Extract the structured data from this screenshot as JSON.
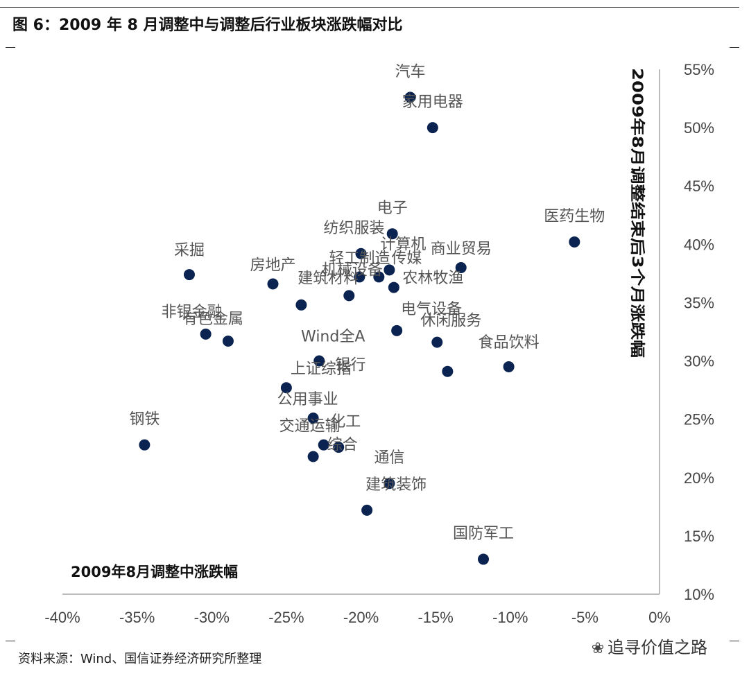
{
  "figure": {
    "title": "图 6：2009 年 8 月调整中与调整后行业板块涨跌幅对比",
    "source": "资料来源：Wind、国信证券经济研究所整理",
    "watermark": "追寻价值之路",
    "watermark_icon": "wechat-icon"
  },
  "chart_data": {
    "type": "scatter",
    "xlabel": "2009年8月调整中涨跌幅",
    "ylabel": "2009年8月调整结束后3个月涨跌幅",
    "xlim": [
      -40,
      0
    ],
    "ylim": [
      10,
      55
    ],
    "xticks": [
      -40,
      -35,
      -30,
      -25,
      -20,
      -15,
      -10,
      -5,
      0
    ],
    "yticks": [
      10,
      15,
      20,
      25,
      30,
      35,
      40,
      45,
      50,
      55
    ],
    "xtick_labels": [
      "-40%",
      "-35%",
      "-30%",
      "-25%",
      "-20%",
      "-15%",
      "-10%",
      "-5%",
      "0%"
    ],
    "ytick_labels": [
      "10%",
      "15%",
      "20%",
      "25%",
      "30%",
      "35%",
      "40%",
      "45%",
      "50%",
      "55%"
    ],
    "y_axis_position": "right",
    "grid": false,
    "marker_color": "#0b2350",
    "points": [
      {
        "label": "汽车",
        "x": -16.7,
        "y": 52.6
      },
      {
        "label": "家用电器",
        "x": -15.2,
        "y": 50.0
      },
      {
        "label": "医药生物",
        "x": -5.7,
        "y": 40.2
      },
      {
        "label": "电子",
        "x": -17.9,
        "y": 40.9
      },
      {
        "label": "纺织服装",
        "x": -20.0,
        "y": 39.2
      },
      {
        "label": "计算机",
        "x": -18.1,
        "y": 37.8
      },
      {
        "label": "轻工制造",
        "x": -20.1,
        "y": 37.2
      },
      {
        "label": "传媒",
        "x": -18.8,
        "y": 37.2
      },
      {
        "label": "机械设备",
        "x": -17.8,
        "y": 36.3
      },
      {
        "label": "商业贸易",
        "x": -13.3,
        "y": 38.0
      },
      {
        "label": "采掘",
        "x": -31.5,
        "y": 37.4
      },
      {
        "label": "房地产",
        "x": -25.9,
        "y": 36.6
      },
      {
        "label": "建筑材料",
        "x": -20.8,
        "y": 35.6
      },
      {
        "label": "农林牧渔",
        "x": -24.0,
        "y": 34.8
      },
      {
        "label": "电气设备",
        "x": -17.6,
        "y": 32.6
      },
      {
        "label": "非银金融",
        "x": -30.4,
        "y": 32.3
      },
      {
        "label": "有色金属",
        "x": -28.9,
        "y": 31.7
      },
      {
        "label": "休闲服务",
        "x": -14.9,
        "y": 31.6
      },
      {
        "label": "食品饮料",
        "x": -10.1,
        "y": 29.5
      },
      {
        "label": "Wind全A",
        "x": -22.8,
        "y": 30.0
      },
      {
        "label": "银行",
        "x": -14.2,
        "y": 29.1
      },
      {
        "label": "上证综指",
        "x": -25.0,
        "y": 27.7
      },
      {
        "label": "公用事业",
        "x": -23.2,
        "y": 25.1
      },
      {
        "label": "交通运输",
        "x": -22.5,
        "y": 22.8
      },
      {
        "label": "化工",
        "x": -21.5,
        "y": 22.6
      },
      {
        "label": "钢铁",
        "x": -34.5,
        "y": 22.8
      },
      {
        "label": "综合",
        "x": -23.2,
        "y": 21.8
      },
      {
        "label": "通信",
        "x": -18.1,
        "y": 19.5
      },
      {
        "label": "建筑装饰",
        "x": -19.6,
        "y": 17.2
      },
      {
        "label": "国防军工",
        "x": -11.8,
        "y": 13.0
      }
    ]
  }
}
